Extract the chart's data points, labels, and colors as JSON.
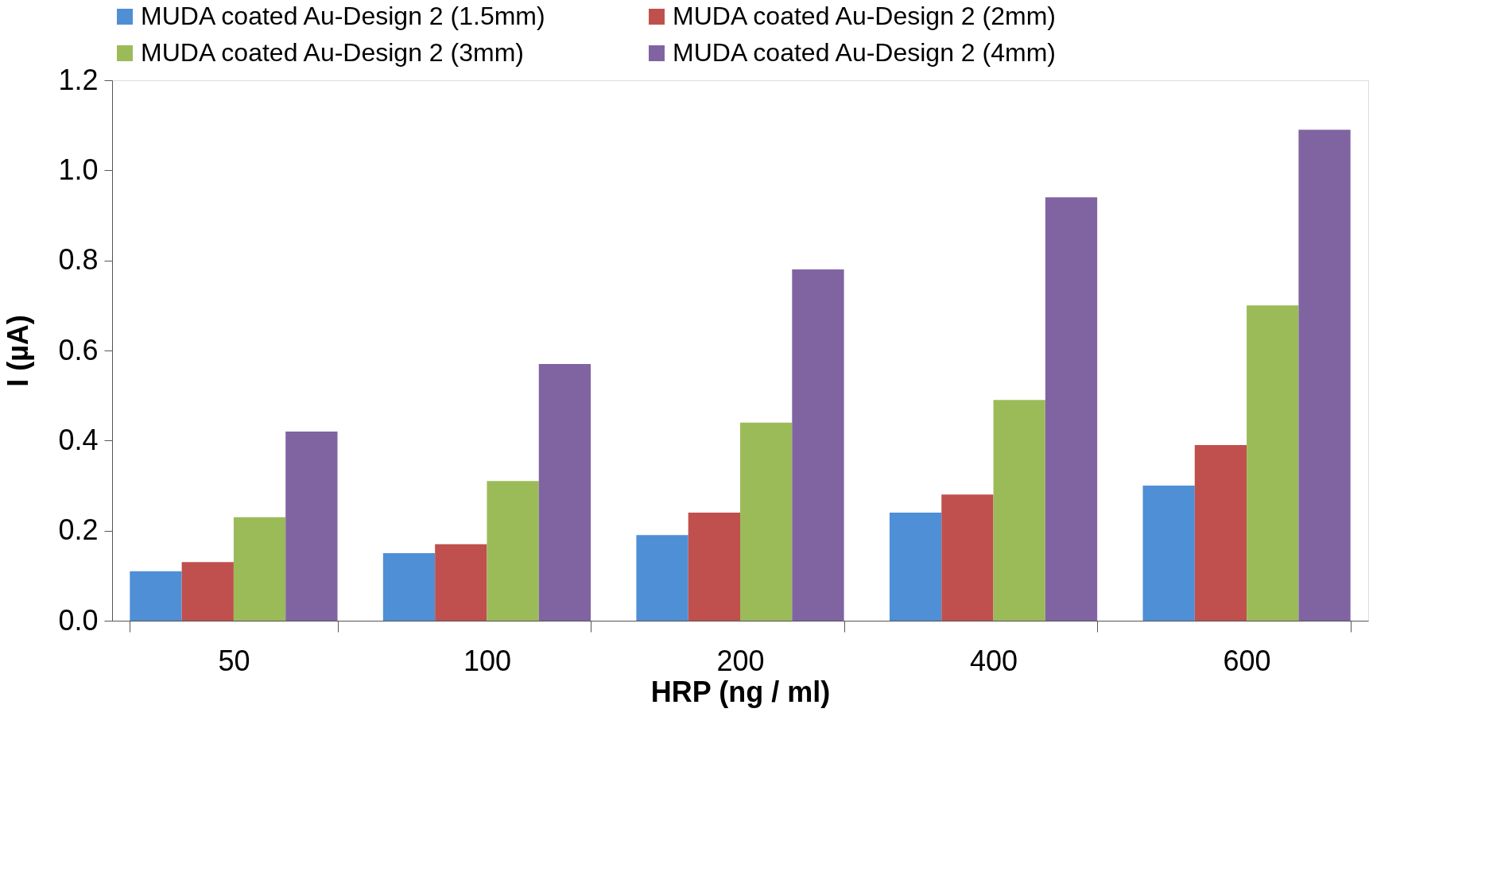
{
  "chart_data": {
    "type": "bar",
    "xlabel": "HRP (ng / ml)",
    "ylabel": "I (µA)",
    "categories": [
      "50",
      "100",
      "200",
      "400",
      "600"
    ],
    "series": [
      {
        "name": "MUDA coated Au-Design 2 (1.5mm)",
        "color": "#4f8fd6",
        "values": [
          0.11,
          0.15,
          0.19,
          0.24,
          0.3
        ]
      },
      {
        "name": "MUDA coated Au-Design 2 (2mm)",
        "color": "#c0504d",
        "values": [
          0.13,
          0.17,
          0.24,
          0.28,
          0.39
        ]
      },
      {
        "name": "MUDA coated Au-Design 2 (3mm)",
        "color": "#9bbb59",
        "values": [
          0.23,
          0.31,
          0.44,
          0.49,
          0.7
        ]
      },
      {
        "name": "MUDA coated Au-Design 2 (4mm)",
        "color": "#8064a2",
        "values": [
          0.42,
          0.57,
          0.78,
          0.94,
          1.09
        ]
      }
    ],
    "ylim": [
      0,
      1.2
    ],
    "yticks": [
      {
        "value": 0,
        "label": "0.0"
      },
      0.2,
      0.4,
      0.6,
      0.8,
      {
        "value": 1,
        "label": "1.0"
      },
      1.2
    ],
    "grid": false,
    "legend": "top"
  }
}
